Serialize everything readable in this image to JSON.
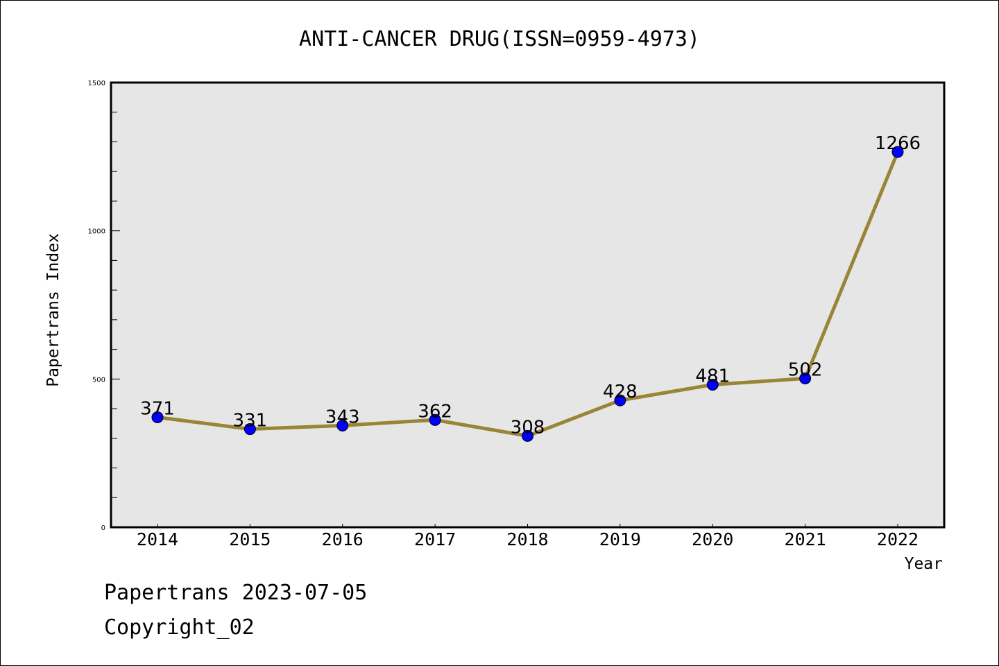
{
  "chart_data": {
    "type": "line",
    "title": "ANTI-CANCER DRUG(ISSN=0959-4973)",
    "xlabel": "Year",
    "ylabel": "Papertrans Index",
    "categories": [
      "2014",
      "2015",
      "2016",
      "2017",
      "2018",
      "2019",
      "2020",
      "2021",
      "2022"
    ],
    "series": [
      {
        "name": "Papertrans Index",
        "values": [
          371,
          331,
          343,
          362,
          308,
          428,
          481,
          502,
          1266
        ]
      }
    ],
    "data_labels": [
      "371",
      "331",
      "343",
      "362",
      "308",
      "428",
      "481",
      "502",
      "1266"
    ],
    "ylim": [
      0,
      1500
    ],
    "y_major_ticks": [
      0,
      500,
      1000,
      1500
    ],
    "y_minor_step": 100,
    "grid": false,
    "legend": "none",
    "colors": {
      "plot_background": "#e6e6e6",
      "line": "#9a8436",
      "marker_fill": "#0000ff",
      "marker_edge": "#000000",
      "axes": "#000000"
    }
  },
  "footer": {
    "line1": "Papertrans 2023-07-05",
    "line2": "Copyright_02"
  }
}
